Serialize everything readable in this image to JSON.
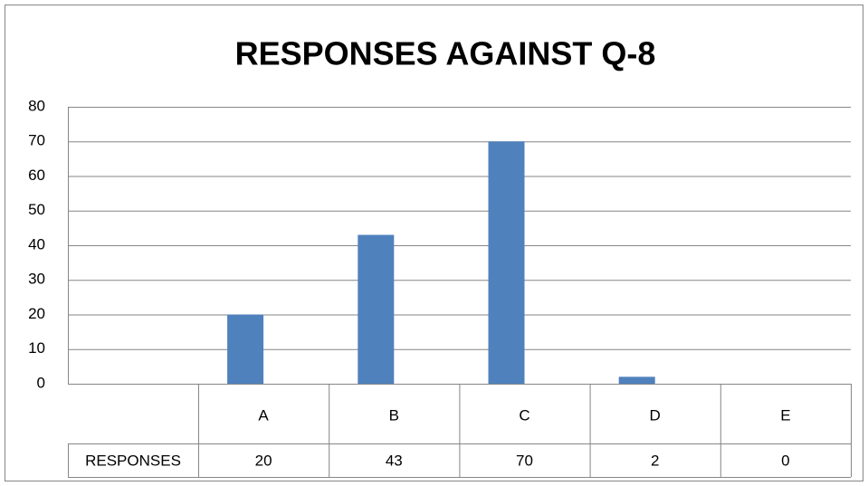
{
  "chart_data": {
    "type": "bar",
    "title": "RESPONSES AGAINST Q-8",
    "categories": [
      "A",
      "B",
      "C",
      "D",
      "E"
    ],
    "series": [
      {
        "name": "RESPONSES",
        "color": "#4f81bd",
        "values": [
          20,
          43,
          70,
          2,
          0
        ]
      }
    ],
    "ylim": [
      0,
      80
    ],
    "yticks": [
      0,
      10,
      20,
      30,
      40,
      50,
      60,
      70,
      80
    ],
    "grid": true,
    "data_table": true
  }
}
